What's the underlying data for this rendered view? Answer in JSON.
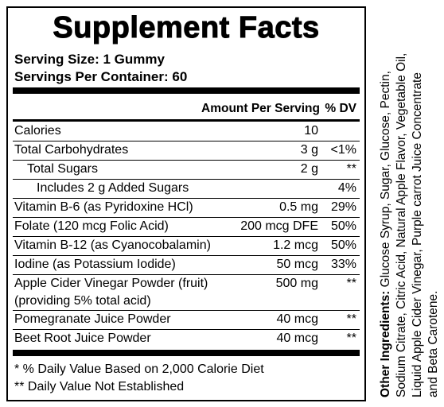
{
  "title": "Supplement Facts",
  "serving_size": "Serving Size:  1 Gummy",
  "servings_per_container": "Servings Per Container: 60",
  "table": {
    "header": [
      "Amount Per Serving",
      "% DV"
    ],
    "rows": [
      {
        "name": "Calories",
        "amount": "10"
      },
      {
        "name": "Total Carbohydrates",
        "amount": "3 g",
        "dv": "<1%"
      },
      {
        "name": "Total Sugars",
        "amount": "2 g",
        "dv": "**"
      },
      {
        "name": "Includes 2 g Added Sugars",
        "dv": "4%"
      },
      {
        "name": "Vitamin B-6 (as Pyridoxine HCl)",
        "amount": "0.5 mg",
        "dv": "29%"
      },
      {
        "name": "Folate (120 mcg Folic Acid)",
        "amount": "200 mcg DFE",
        "dv": "50%"
      },
      {
        "name": "Vitamin B-12 (as Cyanocobalamin)",
        "amount": "1.2 mcg",
        "dv": "50%"
      },
      {
        "name": "Iodine (as Potassium Iodide)",
        "amount": "50 mcg",
        "dv": "33%"
      },
      {
        "name": "Apple Cider Vinegar Powder (fruit)",
        "detail": "(providing 5% total acid)",
        "amount": "500 mg",
        "dv": "**"
      },
      {
        "name": "Pomegranate Juice Powder",
        "amount": "40 mcg",
        "dv": "**"
      },
      {
        "name": "Beet Root Juice Powder",
        "amount": "40 mcg",
        "dv": "**"
      }
    ]
  },
  "footnotes": [
    "* % Daily Value Based on 2,000 Calorie Diet",
    "** Daily Value Not Established"
  ],
  "other_ingredients": {
    "label": "Other Ingredients:",
    "lines": [
      " Glucose Syrup, Sugar, Glucose, Pectin,",
      "Sodium Citrate, Citric Acid, Natural Apple Flavor, Vegetable Oil,",
      "Liquid Apple Cider Vinegar, Purple carrot Juice Concentrate",
      "and Beta Carotene."
    ]
  }
}
